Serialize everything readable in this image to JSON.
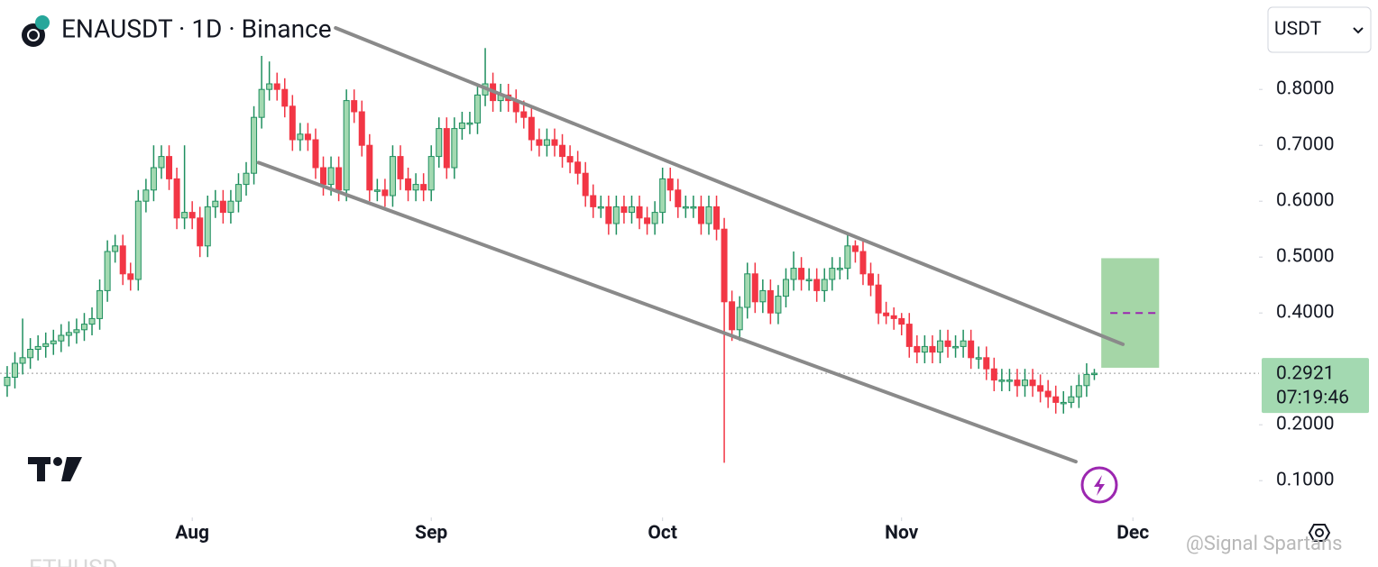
{
  "chart_data": {
    "type": "candlestick",
    "title": "ENAUSDT · 1D · Binance",
    "currency": "USDT",
    "open": [
      0.27,
      0.285,
      0.31,
      0.32,
      0.335,
      0.34,
      0.345,
      0.35,
      0.36,
      0.365,
      0.37,
      0.38,
      0.39,
      0.44,
      0.51,
      0.52,
      0.47,
      0.46,
      0.6,
      0.62,
      0.66,
      0.68,
      0.64,
      0.57,
      0.58,
      0.57,
      0.52,
      0.59,
      0.6,
      0.58,
      0.6,
      0.63,
      0.65,
      0.75,
      0.8,
      0.81,
      0.8,
      0.77,
      0.71,
      0.72,
      0.71,
      0.66,
      0.63,
      0.66,
      0.62,
      0.78,
      0.76,
      0.7,
      0.62,
      0.62,
      0.61,
      0.68,
      0.64,
      0.62,
      0.63,
      0.62,
      0.68,
      0.73,
      0.66,
      0.73,
      0.74,
      0.74,
      0.79,
      0.81,
      0.78,
      0.79,
      0.78,
      0.76,
      0.75,
      0.71,
      0.7,
      0.71,
      0.7,
      0.68,
      0.67,
      0.65,
      0.61,
      0.59,
      0.59,
      0.56,
      0.59,
      0.58,
      0.59,
      0.57,
      0.56,
      0.58,
      0.64,
      0.62,
      0.59,
      0.59,
      0.59,
      0.56,
      0.59,
      0.55,
      0.42,
      0.37,
      0.41,
      0.47,
      0.42,
      0.44,
      0.4,
      0.43,
      0.46,
      0.48,
      0.46,
      0.46,
      0.44,
      0.46,
      0.48,
      0.48,
      0.52,
      0.51,
      0.47,
      0.45,
      0.4,
      0.395,
      0.39,
      0.38,
      0.34,
      0.33,
      0.34,
      0.33,
      0.35,
      0.34,
      0.34,
      0.35,
      0.32,
      0.32,
      0.3,
      0.28,
      0.28,
      0.28,
      0.27,
      0.28,
      0.27,
      0.26,
      0.25,
      0.24,
      0.24,
      0.25,
      0.27,
      0.29
    ],
    "high": [
      0.305,
      0.33,
      0.39,
      0.355,
      0.36,
      0.365,
      0.37,
      0.38,
      0.385,
      0.39,
      0.4,
      0.41,
      0.46,
      0.53,
      0.54,
      0.54,
      0.49,
      0.62,
      0.64,
      0.7,
      0.7,
      0.7,
      0.66,
      0.7,
      0.6,
      0.59,
      0.61,
      0.62,
      0.62,
      0.62,
      0.65,
      0.67,
      0.77,
      0.86,
      0.85,
      0.83,
      0.82,
      0.79,
      0.74,
      0.74,
      0.73,
      0.68,
      0.68,
      0.68,
      0.8,
      0.8,
      0.78,
      0.72,
      0.64,
      0.64,
      0.7,
      0.7,
      0.66,
      0.65,
      0.65,
      0.7,
      0.75,
      0.75,
      0.75,
      0.76,
      0.76,
      0.81,
      0.874,
      0.83,
      0.81,
      0.81,
      0.8,
      0.78,
      0.77,
      0.73,
      0.73,
      0.73,
      0.72,
      0.7,
      0.69,
      0.67,
      0.63,
      0.61,
      0.61,
      0.61,
      0.61,
      0.61,
      0.61,
      0.59,
      0.6,
      0.66,
      0.66,
      0.64,
      0.61,
      0.61,
      0.61,
      0.61,
      0.61,
      0.57,
      0.44,
      0.43,
      0.49,
      0.49,
      0.46,
      0.46,
      0.45,
      0.48,
      0.51,
      0.5,
      0.48,
      0.48,
      0.48,
      0.5,
      0.5,
      0.54,
      0.53,
      0.53,
      0.49,
      0.47,
      0.42,
      0.41,
      0.4,
      0.4,
      0.36,
      0.36,
      0.36,
      0.37,
      0.37,
      0.36,
      0.37,
      0.37,
      0.34,
      0.34,
      0.32,
      0.3,
      0.3,
      0.3,
      0.3,
      0.3,
      0.29,
      0.28,
      0.27,
      0.26,
      0.27,
      0.29,
      0.31,
      0.3
    ],
    "low": [
      0.25,
      0.265,
      0.29,
      0.3,
      0.315,
      0.32,
      0.325,
      0.33,
      0.34,
      0.345,
      0.35,
      0.36,
      0.37,
      0.42,
      0.49,
      0.45,
      0.44,
      0.44,
      0.58,
      0.6,
      0.64,
      0.62,
      0.55,
      0.55,
      0.55,
      0.5,
      0.5,
      0.57,
      0.56,
      0.56,
      0.58,
      0.61,
      0.63,
      0.73,
      0.78,
      0.78,
      0.75,
      0.69,
      0.69,
      0.69,
      0.64,
      0.61,
      0.61,
      0.6,
      0.6,
      0.74,
      0.68,
      0.6,
      0.6,
      0.59,
      0.59,
      0.62,
      0.6,
      0.6,
      0.6,
      0.6,
      0.66,
      0.64,
      0.64,
      0.71,
      0.72,
      0.72,
      0.77,
      0.76,
      0.76,
      0.76,
      0.74,
      0.73,
      0.69,
      0.68,
      0.68,
      0.68,
      0.66,
      0.65,
      0.63,
      0.59,
      0.57,
      0.57,
      0.54,
      0.54,
      0.56,
      0.56,
      0.55,
      0.54,
      0.54,
      0.56,
      0.6,
      0.57,
      0.57,
      0.57,
      0.54,
      0.54,
      0.53,
      0.132,
      0.35,
      0.35,
      0.39,
      0.4,
      0.4,
      0.38,
      0.38,
      0.41,
      0.44,
      0.44,
      0.44,
      0.42,
      0.42,
      0.44,
      0.46,
      0.46,
      0.49,
      0.45,
      0.43,
      0.38,
      0.38,
      0.37,
      0.36,
      0.32,
      0.31,
      0.31,
      0.31,
      0.31,
      0.32,
      0.32,
      0.32,
      0.3,
      0.3,
      0.28,
      0.26,
      0.26,
      0.26,
      0.25,
      0.25,
      0.25,
      0.24,
      0.23,
      0.22,
      0.22,
      0.23,
      0.23,
      0.25,
      0.28
    ],
    "close": [
      0.285,
      0.31,
      0.32,
      0.335,
      0.34,
      0.345,
      0.35,
      0.36,
      0.365,
      0.37,
      0.38,
      0.39,
      0.44,
      0.51,
      0.52,
      0.47,
      0.46,
      0.6,
      0.62,
      0.66,
      0.68,
      0.64,
      0.57,
      0.58,
      0.57,
      0.52,
      0.59,
      0.6,
      0.58,
      0.6,
      0.63,
      0.65,
      0.75,
      0.8,
      0.81,
      0.8,
      0.77,
      0.71,
      0.72,
      0.71,
      0.66,
      0.63,
      0.66,
      0.62,
      0.78,
      0.76,
      0.7,
      0.62,
      0.62,
      0.61,
      0.68,
      0.64,
      0.62,
      0.63,
      0.62,
      0.68,
      0.73,
      0.66,
      0.73,
      0.74,
      0.74,
      0.79,
      0.81,
      0.78,
      0.79,
      0.78,
      0.76,
      0.75,
      0.71,
      0.7,
      0.71,
      0.7,
      0.68,
      0.67,
      0.65,
      0.61,
      0.59,
      0.59,
      0.56,
      0.59,
      0.58,
      0.59,
      0.57,
      0.56,
      0.58,
      0.64,
      0.62,
      0.59,
      0.59,
      0.59,
      0.56,
      0.59,
      0.55,
      0.42,
      0.37,
      0.41,
      0.47,
      0.42,
      0.44,
      0.4,
      0.43,
      0.46,
      0.48,
      0.46,
      0.46,
      0.44,
      0.46,
      0.48,
      0.48,
      0.52,
      0.51,
      0.47,
      0.45,
      0.4,
      0.395,
      0.39,
      0.38,
      0.34,
      0.33,
      0.34,
      0.33,
      0.35,
      0.34,
      0.34,
      0.35,
      0.32,
      0.32,
      0.3,
      0.28,
      0.28,
      0.28,
      0.27,
      0.28,
      0.27,
      0.26,
      0.25,
      0.24,
      0.24,
      0.25,
      0.27,
      0.29,
      0.2921
    ],
    "up_color": "#1f8f5f",
    "up_fill": "#a3d9b1",
    "down_color": "#f23645",
    "last_price_label": "0.2921",
    "countdown": "07:19:46",
    "xlim": [
      -0.5,
      162
    ],
    "xticks": [
      {
        "value": 24,
        "label": "Aug"
      },
      {
        "value": 55,
        "label": "Sep"
      },
      {
        "value": 85,
        "label": "Oct"
      },
      {
        "value": 116,
        "label": "Nov"
      },
      {
        "value": 146,
        "label": "Dec"
      }
    ],
    "ylim": [
      0.04,
      0.96
    ],
    "yticks": [
      {
        "value": 0.1,
        "label": "0.1000"
      },
      {
        "value": 0.2,
        "label": "0.2000"
      },
      {
        "value": 0.4,
        "label": "0.4000"
      },
      {
        "value": 0.5,
        "label": "0.5000"
      },
      {
        "value": 0.6,
        "label": "0.6000"
      },
      {
        "value": 0.7,
        "label": "0.7000"
      },
      {
        "value": 0.8,
        "label": "0.8000"
      }
    ],
    "trendlines": [
      {
        "x": [
          42.6,
          144.7
        ],
        "y": [
          0.91,
          0.344
        ]
      },
      {
        "x": [
          32.6,
          138.6
        ],
        "y": [
          0.669,
          0.134
        ]
      }
    ],
    "target_zone": {
      "x": [
        141.9,
        149.4
      ],
      "y": [
        0.302,
        0.498
      ],
      "mid": 0.4
    },
    "watermark": "@Signal Spartans",
    "footer_symbol": "ETHUSD"
  }
}
